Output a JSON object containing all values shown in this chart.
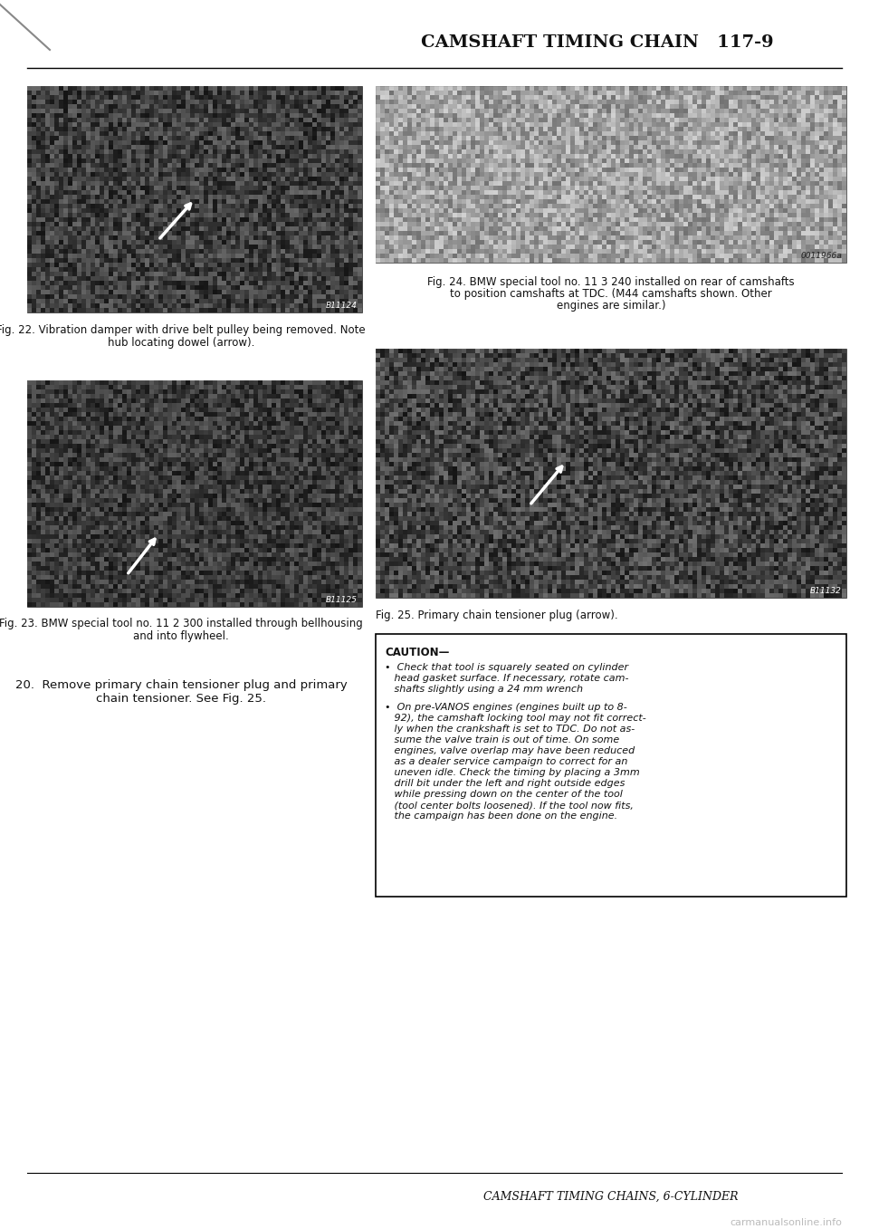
{
  "page_title": "CAMSHAFT TIMING CHAIN   117-9",
  "footer_title": "CAMSHAFT TIMING CHAINS, 6-CYLINDER",
  "watermark": "carmanualsonline.info",
  "bg_color": "#ffffff",
  "header_line_color": "#000000",
  "fig22_caption_line1": "Fig. 22. Vibration damper with drive belt pulley being removed. Note",
  "fig22_caption_line2": "hub locating dowel (arrow).",
  "fig23_caption_line1": "Fig. 23. BMW special tool no. 11 2 300 installed through bellhousing",
  "fig23_caption_line2": "and into flywheel.",
  "fig24_caption_line1": "Fig. 24. BMW special tool no. 11 3 240 installed on rear of camshafts",
  "fig24_caption_line2": "to position camshafts at TDC. (M44 camshafts shown. Other",
  "fig24_caption_line3": "engines are similar.)",
  "fig25_caption": "Fig. 25. Primary chain tensioner plug (arrow).",
  "step20_line1": "20.  Remove primary chain tensioner plug and primary",
  "step20_line2": "chain tensioner. See Fig. 25.",
  "caution_title": "CAUTION—",
  "b1_lines": [
    "•  Check that tool is squarely seated on cylinder",
    "   head gasket surface. If necessary, rotate cam-",
    "   shafts slightly using a 24 mm wrench"
  ],
  "b2_lines": [
    "•  On pre-VANOS engines (engines built up to 8-",
    "   92), the camshaft locking tool may not fit correct-",
    "   ly when the crankshaft is set to TDC. Do not as-",
    "   sume the valve train is out of time. On some",
    "   engines, valve overlap may have been reduced",
    "   as a dealer service campaign to correct for an",
    "   uneven idle. Check the timing by placing a 3mm",
    "   drill bit under the left and right outside edges",
    "   while pressing down on the center of the tool",
    "   (tool center bolts loosened). If the tool now fits,",
    "   the campaign has been done on the engine."
  ],
  "title_font_size": 14,
  "caption_font_size": 8.5,
  "step_font_size": 9.5,
  "caution_font_size": 8,
  "footer_font_size": 9,
  "watermark_font_size": 8
}
